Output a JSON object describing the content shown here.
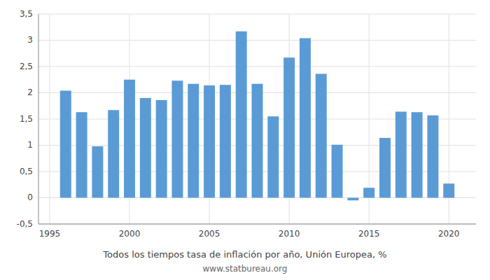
{
  "chart_data": {
    "type": "bar",
    "title": "Todos los tiempos tasa de inflación por año, Unión Europea, %",
    "subtitle": "www.statbureau.org",
    "x": [
      1996,
      1997,
      1998,
      1999,
      2000,
      2001,
      2002,
      2003,
      2004,
      2005,
      2006,
      2007,
      2008,
      2009,
      2010,
      2011,
      2012,
      2013,
      2014,
      2015,
      2016,
      2017,
      2018,
      2019,
      2020
    ],
    "values": [
      2.04,
      1.63,
      0.98,
      1.67,
      2.25,
      1.9,
      1.86,
      2.23,
      2.17,
      2.14,
      2.15,
      3.17,
      2.17,
      1.55,
      2.67,
      3.04,
      2.36,
      1.01,
      -0.05,
      0.19,
      1.14,
      1.64,
      1.63,
      1.57,
      0.27
    ],
    "color": "#5b9bd5",
    "xlim": [
      1994.3,
      2021.7
    ],
    "xticks": [
      1995,
      2000,
      2005,
      2010,
      2015,
      2020
    ],
    "ylim": [
      -0.5,
      3.5
    ],
    "yticks": [
      {
        "value": -0.5,
        "label": "-0,5"
      },
      0,
      {
        "value": 0.5,
        "label": "0,5"
      },
      1,
      {
        "value": 1.5,
        "label": "1,5"
      },
      2,
      {
        "value": 2.5,
        "label": "2,5"
      },
      3,
      {
        "value": 3.5,
        "label": "3,5"
      }
    ],
    "grid": true
  }
}
